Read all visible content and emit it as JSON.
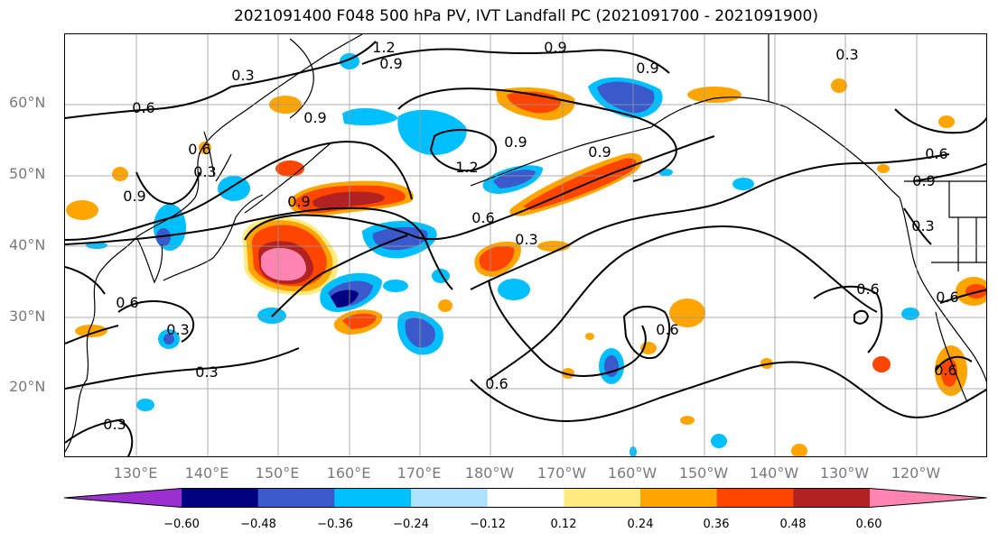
{
  "title": "2021091400 F048 500 hPa PV, IVT Landfall PC (2021091700 - 2021091900)",
  "lat_labels": [
    "60°N",
    "50°N",
    "40°N",
    "30°N",
    "20°N"
  ],
  "lon_labels": [
    "130°E",
    "140°E",
    "150°E",
    "160°E",
    "170°E",
    "180°W",
    "170°W",
    "160°W",
    "150°W",
    "140°W",
    "130°W",
    "120°W"
  ],
  "contour_labels": [
    "1.2",
    "0.9",
    "0.3",
    "0.9",
    "0.6",
    "0.9",
    "0.3",
    "0.9",
    "0.6",
    "0.9",
    "0.9",
    "0.6",
    "1.2",
    "0.9",
    "0.6",
    "0.3",
    "0.3",
    "0.6",
    "0.6",
    "0.3",
    "0.3",
    "0.6",
    "0.6",
    "0.6",
    "0.3",
    "0.9",
    "0.6",
    "0.9",
    "0.3"
  ],
  "colorbar": {
    "colors": [
      "#9b30d0",
      "#000080",
      "#3a5acc",
      "#00bfff",
      "#b0e0ff",
      "#ffffff",
      "#ffeb80",
      "#ffa500",
      "#ff4500",
      "#b22222",
      "#ff85b0"
    ],
    "tick_labels": [
      "−0.60",
      "−0.48",
      "−0.36",
      "−0.24",
      "−0.12",
      "0.12",
      "0.24",
      "0.36",
      "0.48",
      "0.60"
    ]
  },
  "colors": {
    "land_outline": "#000000",
    "grid": "#999999",
    "contour": "#000000",
    "tick_text": "#7a7a7a"
  }
}
